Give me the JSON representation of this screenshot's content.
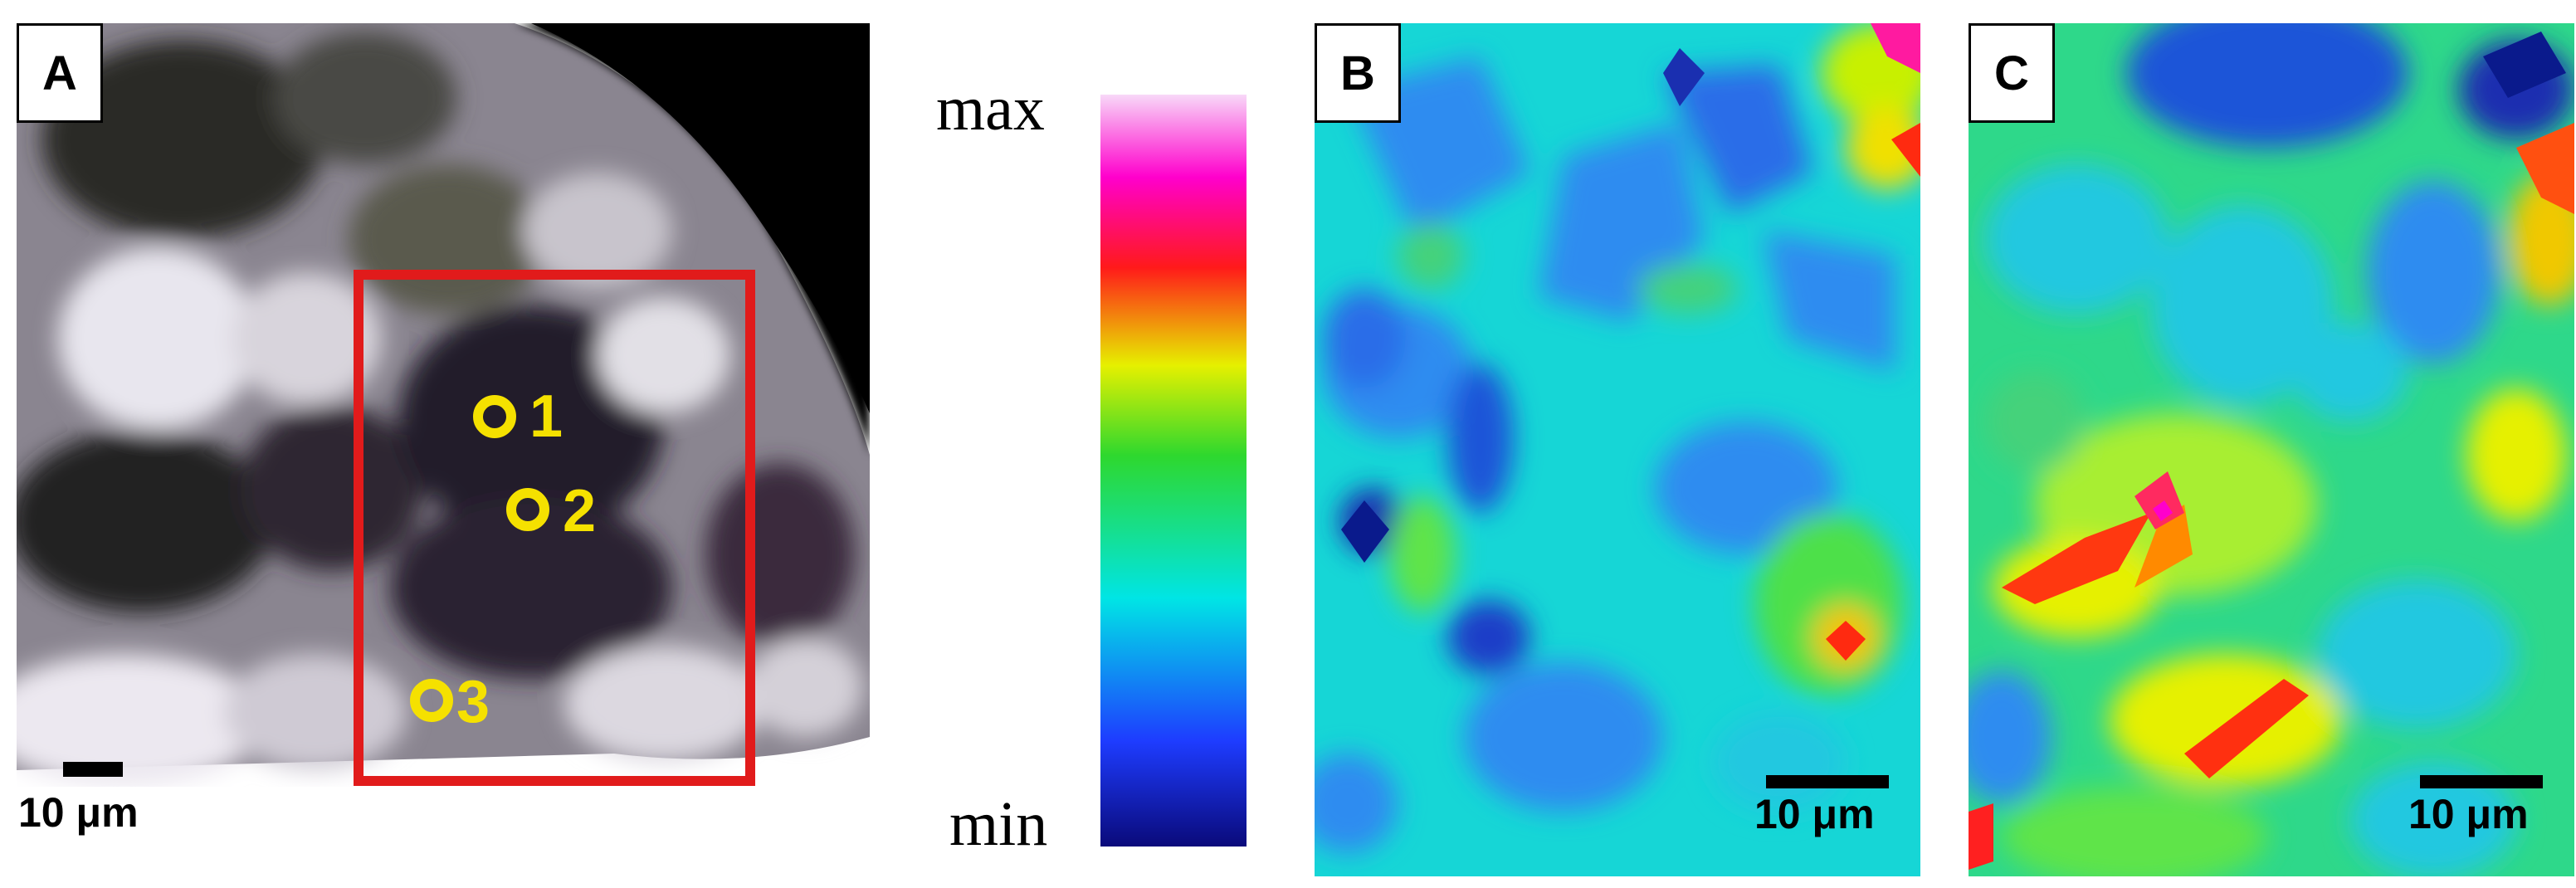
{
  "panels": {
    "a": {
      "label": "A",
      "scale_label": "10 μm",
      "points": [
        "1",
        "2",
        "3"
      ],
      "roi_color": "#e11b1b",
      "marker_color": "#f5e100"
    },
    "b": {
      "label": "B",
      "scale_label": "10 μm"
    },
    "c": {
      "label": "C",
      "scale_label": "10 μm"
    }
  },
  "colorbar": {
    "max_label": "max",
    "min_label": "min",
    "colors": [
      "#0a0a7a",
      "#1e3cff",
      "#00e5e5",
      "#2ed82e",
      "#e6f000",
      "#ff1a1a",
      "#ff00cc",
      "#f8d8f8"
    ]
  }
}
